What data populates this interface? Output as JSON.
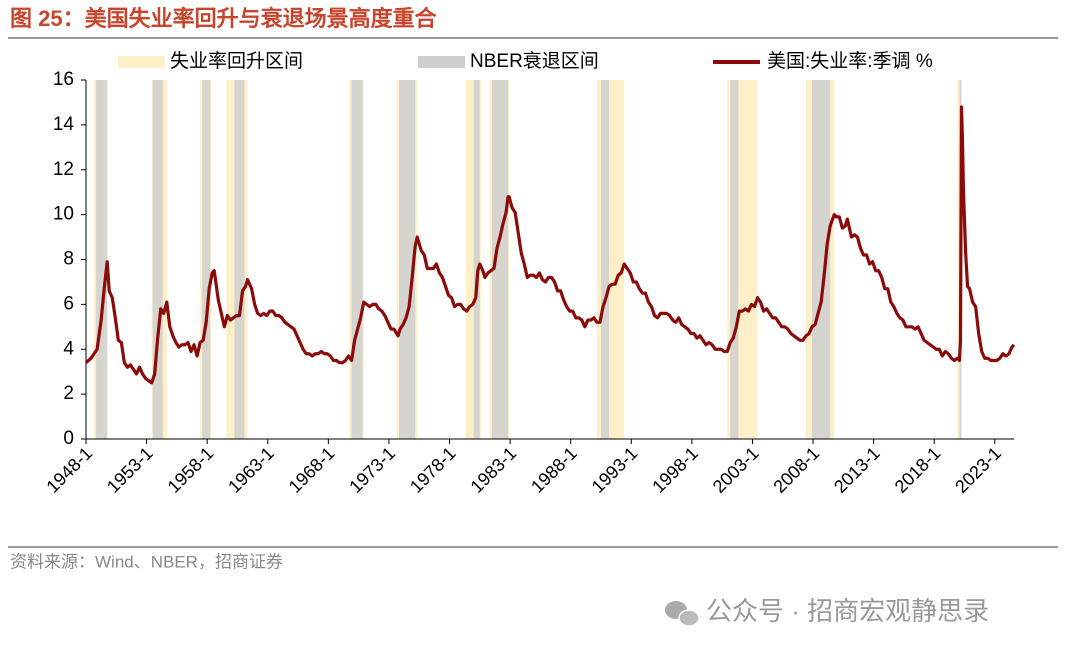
{
  "chart_data": {
    "type": "line",
    "title": "图 25：美国失业率回升与衰退场景高度重合",
    "source": "资料来源：Wind、NBER，招商证券",
    "xlim": [
      "1948-1",
      "2024-8"
    ],
    "xticks": [
      "1948-1",
      "1953-1",
      "1958-1",
      "1963-1",
      "1968-1",
      "1973-1",
      "1978-1",
      "1983-1",
      "1988-1",
      "1993-1",
      "1998-1",
      "2003-1",
      "2008-1",
      "2013-1",
      "2018-1",
      "2023-1"
    ],
    "ylim": [
      0,
      16
    ],
    "yticks": [
      0,
      2,
      4,
      6,
      8,
      10,
      12,
      14,
      16
    ],
    "bands": [
      {
        "name": "失业率回升区间",
        "color": "#fdf0c8",
        "intervals": [
          [
            "1948-9",
            "1949-10"
          ],
          [
            "1953-6",
            "1954-9"
          ],
          [
            "1957-6",
            "1958-5"
          ],
          [
            "1959-8",
            "1961-5"
          ],
          [
            "1969-10",
            "1970-12"
          ],
          [
            "1973-9",
            "1975-5"
          ],
          [
            "1979-5",
            "1980-8"
          ],
          [
            "1981-5",
            "1982-12"
          ],
          [
            "1990-3",
            "1992-6"
          ],
          [
            "2000-12",
            "2003-6"
          ],
          [
            "2007-6",
            "2009-10"
          ],
          [
            "2019-12",
            "2020-4"
          ]
        ]
      },
      {
        "name": "NBER衰退区间",
        "color": "#cfcfcf",
        "intervals": [
          [
            "1948-11",
            "1949-10"
          ],
          [
            "1953-7",
            "1954-5"
          ],
          [
            "1957-8",
            "1958-4"
          ],
          [
            "1960-4",
            "1961-2"
          ],
          [
            "1969-12",
            "1970-11"
          ],
          [
            "1973-11",
            "1975-3"
          ],
          [
            "1980-1",
            "1980-7"
          ],
          [
            "1981-7",
            "1982-11"
          ],
          [
            "1990-7",
            "1991-3"
          ],
          [
            "2001-3",
            "2001-11"
          ],
          [
            "2007-12",
            "2009-6"
          ],
          [
            "2020-2",
            "2020-4"
          ]
        ]
      }
    ],
    "x": [
      "1948-1",
      "1948-6",
      "1948-12",
      "1949-4",
      "1949-7",
      "1949-10",
      "1949-12",
      "1950-3",
      "1950-6",
      "1950-9",
      "1950-12",
      "1951-3",
      "1951-6",
      "1951-9",
      "1951-12",
      "1952-3",
      "1952-6",
      "1952-9",
      "1952-12",
      "1953-3",
      "1953-6",
      "1953-9",
      "1953-12",
      "1954-3",
      "1954-6",
      "1954-9",
      "1954-12",
      "1955-3",
      "1955-6",
      "1955-9",
      "1955-12",
      "1956-3",
      "1956-6",
      "1956-9",
      "1956-12",
      "1957-3",
      "1957-6",
      "1957-9",
      "1957-12",
      "1958-3",
      "1958-6",
      "1958-8",
      "1958-12",
      "1959-3",
      "1959-6",
      "1959-9",
      "1959-12",
      "1960-3",
      "1960-6",
      "1960-9",
      "1960-12",
      "1961-3",
      "1961-5",
      "1961-9",
      "1961-12",
      "1962-3",
      "1962-6",
      "1962-9",
      "1962-12",
      "1963-3",
      "1963-6",
      "1963-9",
      "1963-12",
      "1964-3",
      "1964-6",
      "1964-9",
      "1964-12",
      "1965-3",
      "1965-6",
      "1965-9",
      "1965-12",
      "1966-3",
      "1966-6",
      "1966-9",
      "1966-12",
      "1967-3",
      "1967-6",
      "1967-9",
      "1967-12",
      "1968-3",
      "1968-6",
      "1968-9",
      "1968-12",
      "1969-3",
      "1969-6",
      "1969-9",
      "1969-12",
      "1970-3",
      "1970-6",
      "1970-9",
      "1970-12",
      "1971-3",
      "1971-6",
      "1971-9",
      "1971-12",
      "1972-3",
      "1972-6",
      "1972-9",
      "1972-12",
      "1973-3",
      "1973-6",
      "1973-10",
      "1973-12",
      "1974-3",
      "1974-6",
      "1974-9",
      "1974-12",
      "1975-3",
      "1975-5",
      "1975-9",
      "1975-12",
      "1976-3",
      "1976-6",
      "1976-9",
      "1976-12",
      "1977-3",
      "1977-6",
      "1977-9",
      "1977-12",
      "1978-3",
      "1978-6",
      "1978-9",
      "1978-12",
      "1979-3",
      "1979-6",
      "1979-9",
      "1979-12",
      "1980-3",
      "1980-5",
      "1980-7",
      "1980-10",
      "1980-12",
      "1981-3",
      "1981-6",
      "1981-9",
      "1981-12",
      "1982-3",
      "1982-6",
      "1982-9",
      "1982-11",
      "1982-12",
      "1983-3",
      "1983-6",
      "1983-9",
      "1983-12",
      "1984-3",
      "1984-6",
      "1984-9",
      "1984-12",
      "1985-3",
      "1985-6",
      "1985-9",
      "1985-12",
      "1986-3",
      "1986-6",
      "1986-9",
      "1986-12",
      "1987-3",
      "1987-6",
      "1987-9",
      "1987-12",
      "1988-3",
      "1988-6",
      "1988-9",
      "1988-12",
      "1989-3",
      "1989-6",
      "1989-9",
      "1989-12",
      "1990-3",
      "1990-6",
      "1990-9",
      "1990-12",
      "1991-3",
      "1991-6",
      "1991-9",
      "1991-12",
      "1992-3",
      "1992-6",
      "1992-9",
      "1992-12",
      "1993-3",
      "1993-6",
      "1993-9",
      "1993-12",
      "1994-3",
      "1994-6",
      "1994-9",
      "1994-12",
      "1995-3",
      "1995-6",
      "1995-9",
      "1995-12",
      "1996-3",
      "1996-6",
      "1996-9",
      "1996-12",
      "1997-3",
      "1997-6",
      "1997-9",
      "1997-12",
      "1998-3",
      "1998-6",
      "1998-9",
      "1998-12",
      "1999-3",
      "1999-6",
      "1999-9",
      "1999-12",
      "2000-3",
      "2000-6",
      "2000-9",
      "2000-12",
      "2001-3",
      "2001-6",
      "2001-9",
      "2001-12",
      "2002-3",
      "2002-6",
      "2002-9",
      "2002-12",
      "2003-3",
      "2003-6",
      "2003-9",
      "2003-12",
      "2004-3",
      "2004-6",
      "2004-9",
      "2004-12",
      "2005-3",
      "2005-6",
      "2005-9",
      "2005-12",
      "2006-3",
      "2006-6",
      "2006-9",
      "2006-12",
      "2007-3",
      "2007-6",
      "2007-9",
      "2007-12",
      "2008-3",
      "2008-6",
      "2008-9",
      "2008-12",
      "2009-3",
      "2009-6",
      "2009-10",
      "2009-12",
      "2010-3",
      "2010-6",
      "2010-9",
      "2010-11",
      "2011-3",
      "2011-6",
      "2011-9",
      "2011-12",
      "2012-3",
      "2012-6",
      "2012-9",
      "2012-12",
      "2013-3",
      "2013-6",
      "2013-9",
      "2013-12",
      "2014-3",
      "2014-6",
      "2014-9",
      "2014-12",
      "2015-3",
      "2015-6",
      "2015-9",
      "2015-12",
      "2016-3",
      "2016-6",
      "2016-9",
      "2016-12",
      "2017-3",
      "2017-6",
      "2017-9",
      "2017-12",
      "2018-3",
      "2018-6",
      "2018-9",
      "2018-12",
      "2019-3",
      "2019-6",
      "2019-9",
      "2019-12",
      "2020-2",
      "2020-3",
      "2020-4",
      "2020-5",
      "2020-6",
      "2020-8",
      "2020-10",
      "2020-12",
      "2021-3",
      "2021-6",
      "2021-9",
      "2021-12",
      "2022-3",
      "2022-6",
      "2022-9",
      "2022-12",
      "2023-3",
      "2023-6",
      "2023-9",
      "2023-12",
      "2024-3",
      "2024-6",
      "2024-8"
    ],
    "series": [
      {
        "name": "美国:失业率:季调 %",
        "color": "#8b0a0a",
        "values": [
          3.4,
          3.6,
          4.0,
          5.3,
          6.7,
          7.9,
          6.6,
          6.3,
          5.4,
          4.4,
          4.3,
          3.4,
          3.2,
          3.3,
          3.1,
          2.9,
          3.2,
          2.9,
          2.7,
          2.6,
          2.5,
          2.9,
          4.5,
          5.8,
          5.6,
          6.1,
          5.0,
          4.6,
          4.3,
          4.1,
          4.2,
          4.2,
          4.3,
          3.9,
          4.2,
          3.7,
          4.3,
          4.4,
          5.2,
          6.7,
          7.4,
          7.5,
          6.2,
          5.6,
          5.0,
          5.5,
          5.3,
          5.4,
          5.5,
          5.5,
          6.6,
          6.8,
          7.1,
          6.7,
          6.0,
          5.6,
          5.5,
          5.6,
          5.5,
          5.7,
          5.7,
          5.5,
          5.5,
          5.4,
          5.2,
          5.1,
          5.0,
          4.9,
          4.6,
          4.3,
          4.0,
          3.8,
          3.8,
          3.7,
          3.8,
          3.8,
          3.9,
          3.8,
          3.8,
          3.7,
          3.5,
          3.5,
          3.4,
          3.4,
          3.5,
          3.7,
          3.5,
          4.4,
          4.9,
          5.4,
          6.1,
          6.0,
          5.9,
          6.0,
          6.0,
          5.8,
          5.7,
          5.5,
          5.2,
          4.9,
          4.9,
          4.6,
          4.9,
          5.1,
          5.4,
          5.9,
          7.2,
          8.6,
          9.0,
          8.4,
          8.2,
          7.6,
          7.6,
          7.6,
          7.8,
          7.4,
          7.2,
          6.8,
          6.4,
          6.3,
          5.9,
          6.0,
          6.0,
          5.8,
          5.7,
          5.9,
          6.0,
          6.3,
          7.5,
          7.8,
          7.5,
          7.2,
          7.4,
          7.5,
          7.6,
          8.5,
          9.0,
          9.6,
          10.1,
          10.8,
          10.8,
          10.3,
          10.1,
          9.2,
          8.3,
          7.8,
          7.2,
          7.3,
          7.3,
          7.2,
          7.4,
          7.1,
          7.0,
          7.2,
          7.2,
          7.0,
          6.6,
          6.6,
          6.2,
          5.9,
          5.7,
          5.7,
          5.4,
          5.4,
          5.3,
          5.0,
          5.3,
          5.3,
          5.4,
          5.2,
          5.2,
          5.9,
          6.3,
          6.8,
          6.9,
          6.9,
          7.3,
          7.4,
          7.8,
          7.6,
          7.4,
          7.0,
          7.0,
          6.7,
          6.5,
          6.5,
          6.1,
          5.9,
          5.5,
          5.4,
          5.6,
          5.6,
          5.6,
          5.5,
          5.3,
          5.2,
          5.4,
          5.1,
          5.0,
          4.9,
          4.7,
          4.7,
          4.5,
          4.6,
          4.4,
          4.2,
          4.3,
          4.2,
          4.0,
          4.0,
          4.0,
          3.9,
          3.9,
          4.3,
          4.5,
          5.0,
          5.7,
          5.7,
          5.8,
          5.7,
          6.0,
          5.9,
          6.3,
          6.1,
          5.7,
          5.8,
          5.6,
          5.4,
          5.4,
          5.2,
          5.0,
          5.0,
          4.9,
          4.7,
          4.6,
          4.5,
          4.4,
          4.4,
          4.6,
          4.7,
          5.0,
          5.1,
          5.6,
          6.1,
          7.3,
          8.7,
          9.5,
          10.0,
          9.9,
          9.9,
          9.4,
          9.5,
          9.8,
          9.0,
          9.1,
          9.0,
          8.5,
          8.2,
          8.2,
          7.8,
          7.9,
          7.5,
          7.5,
          7.2,
          6.7,
          6.7,
          6.1,
          5.9,
          5.6,
          5.4,
          5.3,
          5.0,
          5.0,
          5.0,
          4.9,
          5.0,
          4.7,
          4.4,
          4.3,
          4.2,
          4.1,
          4.0,
          4.0,
          3.7,
          3.9,
          3.8,
          3.6,
          3.5,
          3.6,
          3.5,
          4.4,
          14.8,
          13.2,
          11.0,
          8.4,
          6.8,
          6.7,
          6.1,
          5.9,
          4.7,
          3.9,
          3.6,
          3.6,
          3.5,
          3.5,
          3.5,
          3.6,
          3.8,
          3.7,
          3.8,
          4.1,
          4.2
        ]
      }
    ]
  },
  "watermark": "公众号 · 招商宏观静思录"
}
